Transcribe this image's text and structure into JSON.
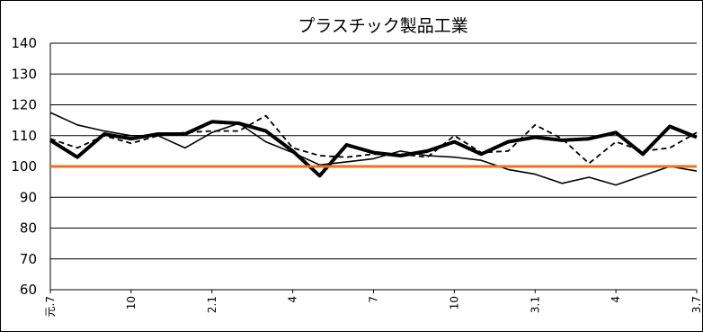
{
  "chart_data": {
    "type": "line",
    "title": "プラスチック製品工業",
    "xlabel": "",
    "ylabel": "",
    "ylim": [
      60,
      140
    ],
    "yticks": [
      60,
      70,
      80,
      90,
      100,
      110,
      120,
      130,
      140
    ],
    "grid": "horizontal",
    "legend": "none",
    "tick_labels": [
      {
        "i": 0,
        "label": "元.7"
      },
      {
        "i": 3,
        "label": "10"
      },
      {
        "i": 6,
        "label": "2.1"
      },
      {
        "i": 9,
        "label": "4"
      },
      {
        "i": 12,
        "label": "7"
      },
      {
        "i": 15,
        "label": "10"
      },
      {
        "i": 18,
        "label": "3.1"
      },
      {
        "i": 21,
        "label": "4"
      },
      {
        "i": 24,
        "label": "3.7"
      }
    ],
    "reference_line": {
      "value": 100,
      "color": "#f07020"
    },
    "series": [
      {
        "style": "thick",
        "color": "#000000",
        "values": [
          108.5,
          103,
          110.5,
          109,
          110.5,
          110.5,
          114.5,
          114,
          111.5,
          105,
          97,
          107,
          104.5,
          103.5,
          105,
          108,
          104,
          108,
          109.5,
          108.5,
          109,
          111,
          104,
          113,
          109.5
        ]
      },
      {
        "style": "dashed",
        "color": "#000000",
        "values": [
          109,
          106,
          110,
          107.5,
          110,
          111,
          111.5,
          111.5,
          116.5,
          106,
          103.5,
          103,
          104,
          104,
          103,
          110,
          104.5,
          105,
          113.5,
          109,
          101,
          108,
          105,
          106,
          111
        ]
      },
      {
        "style": "thin",
        "color": "#000000",
        "values": [
          117.5,
          113.5,
          111.5,
          110,
          110,
          106,
          111,
          114,
          108,
          104.5,
          100.5,
          101.5,
          102.5,
          105,
          103.5,
          103,
          102,
          99,
          97.5,
          94.5,
          96.5,
          94,
          97,
          100,
          98.5
        ]
      }
    ]
  }
}
